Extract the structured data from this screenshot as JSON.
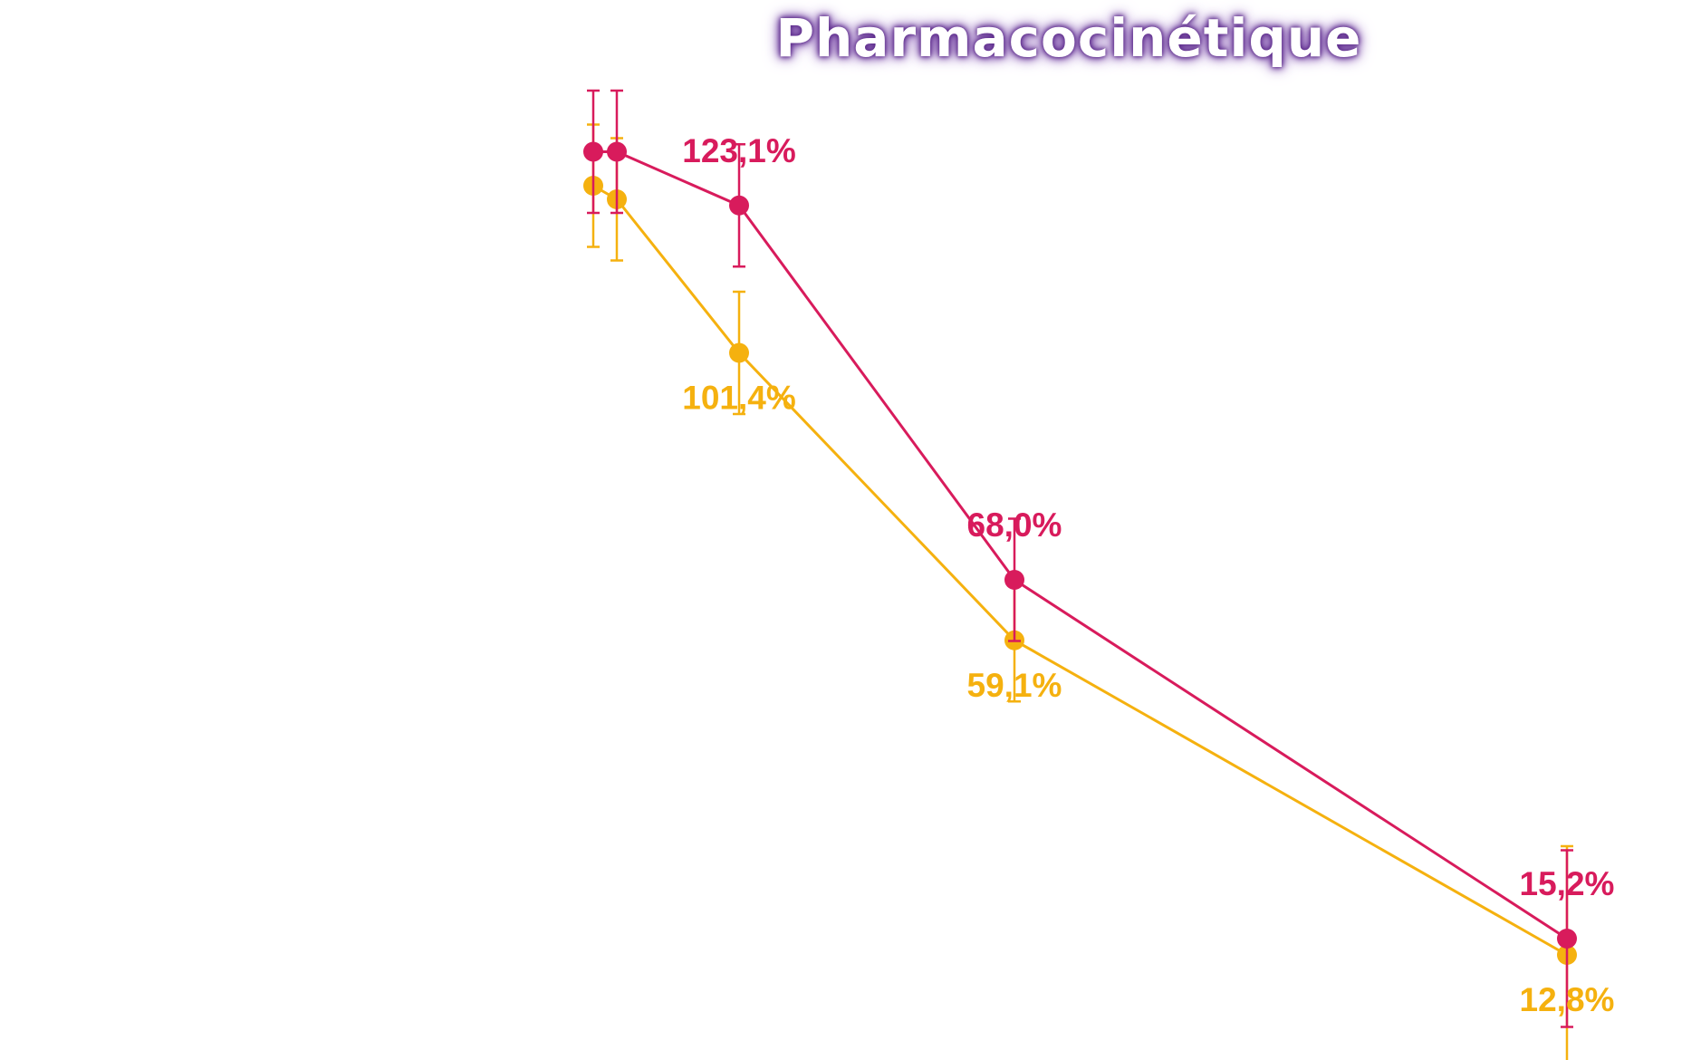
{
  "title": "Pharmacocinétique",
  "colors": {
    "series_a": "#d81b5c",
    "series_b": "#f5b10f",
    "title_glow": "#5b2a8a"
  },
  "chart_data": {
    "type": "line",
    "title": "Pharmacocinétique",
    "xlabel": "",
    "ylabel": "",
    "grid": false,
    "legend": "none",
    "x": [
      0,
      1,
      6,
      18,
      42
    ],
    "ylim": [
      0,
      150
    ],
    "series": [
      {
        "color": "#d81b5c",
        "values": [
          131,
          131,
          123.1,
          68.0,
          15.2
        ],
        "error": [
          9,
          9,
          9,
          9,
          13
        ],
        "labels": [
          "",
          "",
          "123,1%",
          "68,0%",
          "15,2%"
        ]
      },
      {
        "color": "#f5b10f",
        "values": [
          126,
          124,
          101.4,
          59.1,
          12.8
        ],
        "error": [
          9,
          9,
          9,
          9,
          16
        ],
        "labels": [
          "",
          "",
          "101,4%",
          "59,1%",
          "12,8%"
        ]
      }
    ]
  }
}
